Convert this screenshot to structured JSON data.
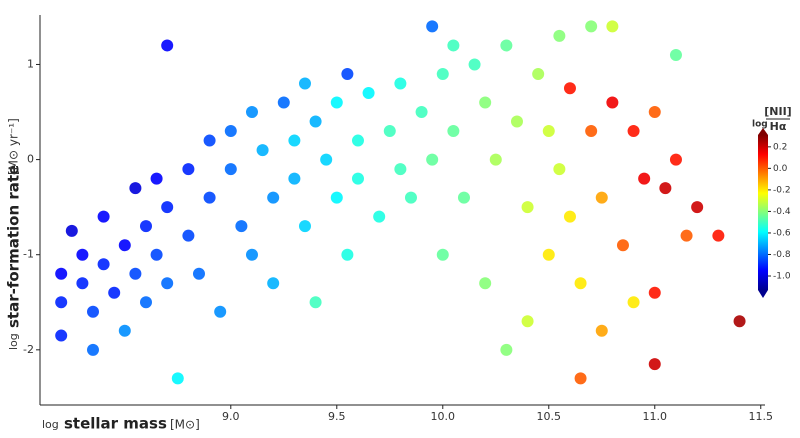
{
  "chart_data": {
    "type": "scatter",
    "x_label": {
      "prefix": "log",
      "text": "stellar mass",
      "unit": "[M⊙]"
    },
    "y_label": {
      "prefix": "log",
      "text": "star-formation rate",
      "unit": "[M⊙ yr⁻¹]"
    },
    "xlim": [
      8.1,
      11.52
    ],
    "ylim": [
      -2.58,
      1.52
    ],
    "xticks": [
      {
        "value": 9,
        "label": "9.0"
      },
      9.5,
      {
        "value": 10,
        "label": "10.0"
      },
      10.5,
      {
        "value": 11,
        "label": "11.0"
      },
      11.5
    ],
    "yticks": [
      -2,
      -1,
      0,
      1
    ],
    "colorbar": {
      "label_prefix": "log",
      "numerator": "[NII]",
      "denominator": "Hα",
      "clim": [
        -1.13,
        0.31
      ],
      "ticks": [
        0.2,
        {
          "value": 0,
          "label": "0.0"
        },
        -0.2,
        -0.4,
        -0.6,
        -0.8,
        {
          "value": -1,
          "label": "-1.0"
        }
      ],
      "colormap": "jet"
    },
    "x": [
      8.2,
      8.2,
      8.2,
      8.25,
      8.3,
      8.3,
      8.35,
      8.35,
      8.4,
      8.4,
      8.45,
      8.5,
      8.5,
      8.55,
      8.55,
      8.6,
      8.6,
      8.65,
      8.65,
      8.7,
      8.7,
      8.7,
      8.75,
      8.8,
      8.8,
      8.85,
      8.9,
      8.9,
      8.95,
      9.0,
      9.0,
      9.05,
      9.1,
      9.1,
      9.15,
      9.2,
      9.2,
      9.25,
      9.3,
      9.3,
      9.35,
      9.35,
      9.4,
      9.4,
      9.45,
      9.5,
      9.5,
      9.55,
      9.55,
      9.6,
      9.6,
      9.65,
      9.7,
      9.75,
      9.8,
      9.8,
      9.85,
      9.9,
      9.95,
      9.95,
      10.0,
      10.0,
      10.05,
      10.05,
      10.1,
      10.15,
      10.2,
      10.2,
      10.25,
      10.3,
      10.3,
      10.35,
      10.4,
      10.4,
      10.45,
      10.5,
      10.5,
      10.55,
      10.55,
      10.6,
      10.6,
      10.65,
      10.65,
      10.7,
      10.7,
      10.75,
      10.75,
      10.8,
      10.8,
      10.85,
      10.9,
      10.9,
      10.95,
      11.0,
      11.0,
      11.0,
      11.05,
      11.1,
      11.1,
      11.15,
      11.2,
      11.4,
      11.3
    ],
    "values": [
      -1.2,
      -1.5,
      -1.85,
      -0.75,
      -1.0,
      -1.3,
      -1.6,
      -2.0,
      -0.6,
      -1.1,
      -1.4,
      -0.9,
      -1.8,
      -0.3,
      -1.2,
      -0.7,
      -1.5,
      -1.0,
      -0.2,
      1.2,
      -0.5,
      -1.3,
      -2.3,
      -0.1,
      -0.8,
      -1.2,
      0.2,
      -0.4,
      -1.6,
      -0.1,
      0.3,
      -0.7,
      -1.0,
      0.5,
      0.1,
      -0.4,
      -1.3,
      0.6,
      0.2,
      -0.2,
      -0.7,
      0.8,
      0.4,
      -1.5,
      0.0,
      0.6,
      -0.4,
      0.9,
      -1.0,
      0.2,
      -0.2,
      0.7,
      -0.6,
      0.3,
      0.8,
      -0.1,
      -0.4,
      0.5,
      1.4,
      0.0,
      0.9,
      -1.0,
      1.2,
      0.3,
      -0.4,
      1.0,
      0.6,
      -1.3,
      0.0,
      1.2,
      -2.0,
      0.4,
      -0.5,
      -1.7,
      0.9,
      0.3,
      -1.0,
      1.3,
      -0.1,
      0.75,
      -0.6,
      -1.3,
      -2.3,
      1.4,
      0.3,
      -0.4,
      -1.8,
      1.4,
      0.6,
      -0.9,
      0.3,
      -1.5,
      -0.2,
      0.5,
      -1.4,
      -2.15,
      -0.3,
      1.1,
      0.0,
      -0.8,
      -0.5,
      -1.7,
      -0.8
    ],
    "color_values": [
      -0.95,
      -0.9,
      -0.9,
      -1.0,
      -0.95,
      -0.9,
      -0.85,
      -0.8,
      -0.95,
      -0.9,
      -0.9,
      -0.95,
      -0.75,
      -1.0,
      -0.85,
      -0.9,
      -0.8,
      -0.85,
      -0.95,
      -0.95,
      -0.9,
      -0.8,
      -0.6,
      -0.9,
      -0.85,
      -0.8,
      -0.85,
      -0.85,
      -0.75,
      -0.8,
      -0.8,
      -0.8,
      -0.75,
      -0.75,
      -0.7,
      -0.75,
      -0.7,
      -0.8,
      -0.65,
      -0.7,
      -0.65,
      -0.7,
      -0.7,
      -0.5,
      -0.65,
      -0.6,
      -0.6,
      -0.85,
      -0.55,
      -0.55,
      -0.55,
      -0.6,
      -0.55,
      -0.5,
      -0.55,
      -0.5,
      -0.5,
      -0.5,
      -0.8,
      -0.45,
      -0.5,
      -0.45,
      -0.5,
      -0.45,
      -0.45,
      -0.5,
      -0.4,
      -0.4,
      -0.35,
      -0.45,
      -0.4,
      -0.35,
      -0.3,
      -0.3,
      -0.35,
      -0.3,
      -0.2,
      -0.4,
      -0.3,
      0.1,
      -0.2,
      -0.2,
      0.0,
      -0.4,
      0.0,
      -0.1,
      -0.1,
      -0.3,
      0.15,
      0.0,
      0.1,
      -0.2,
      0.15,
      0.0,
      0.1,
      0.2,
      0.2,
      -0.45,
      0.1,
      0.0,
      0.2,
      0.25,
      0.1
    ]
  }
}
